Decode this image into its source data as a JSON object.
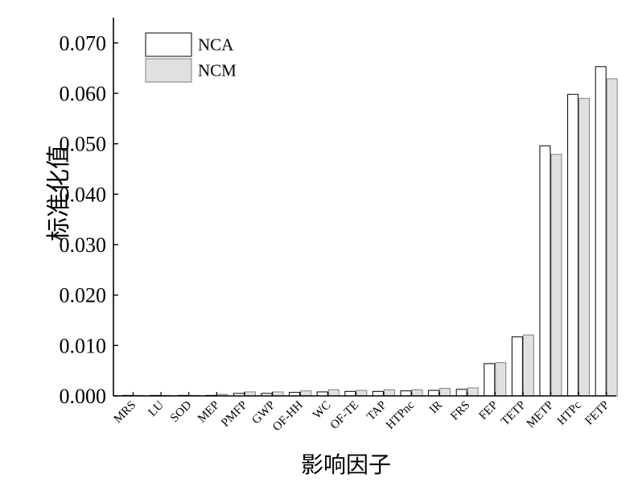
{
  "chart_data": {
    "type": "bar",
    "title": "",
    "xlabel": "影响因子",
    "ylabel": "标准化值",
    "ylim": [
      0,
      0.075
    ],
    "yticks": [
      "0.000",
      "0.010",
      "0.020",
      "0.030",
      "0.040",
      "0.050",
      "0.060",
      "0.070"
    ],
    "ytick_values": [
      0,
      0.01,
      0.02,
      0.03,
      0.04,
      0.05,
      0.06,
      0.07
    ],
    "grid": false,
    "legend": {
      "placement": "top-left"
    },
    "categories": [
      "MRS",
      "LU",
      "SOD",
      "MEP",
      "PMFP",
      "GWP",
      "OF-HH",
      "WC",
      "OF-TE",
      "TAP",
      "HTPnc",
      "IR",
      "FRS",
      "FEP",
      "TETP",
      "METP",
      "HTPc",
      "FETP"
    ],
    "series": [
      {
        "name": "NCA",
        "color": "#ffffff",
        "values": [
          0.0001,
          0.0001,
          0.0001,
          0.0001,
          0.0005,
          0.0005,
          0.0007,
          0.0008,
          0.0009,
          0.0009,
          0.001,
          0.0011,
          0.0013,
          0.0064,
          0.0117,
          0.0496,
          0.0598,
          0.0653
        ]
      },
      {
        "name": "NCM",
        "color": "#e0e0e0",
        "values": [
          0.0001,
          0.0001,
          0.0001,
          0.0003,
          0.0008,
          0.0008,
          0.001,
          0.0012,
          0.0011,
          0.0012,
          0.0012,
          0.0015,
          0.0016,
          0.0066,
          0.0121,
          0.0479,
          0.059,
          0.0629
        ]
      }
    ]
  }
}
